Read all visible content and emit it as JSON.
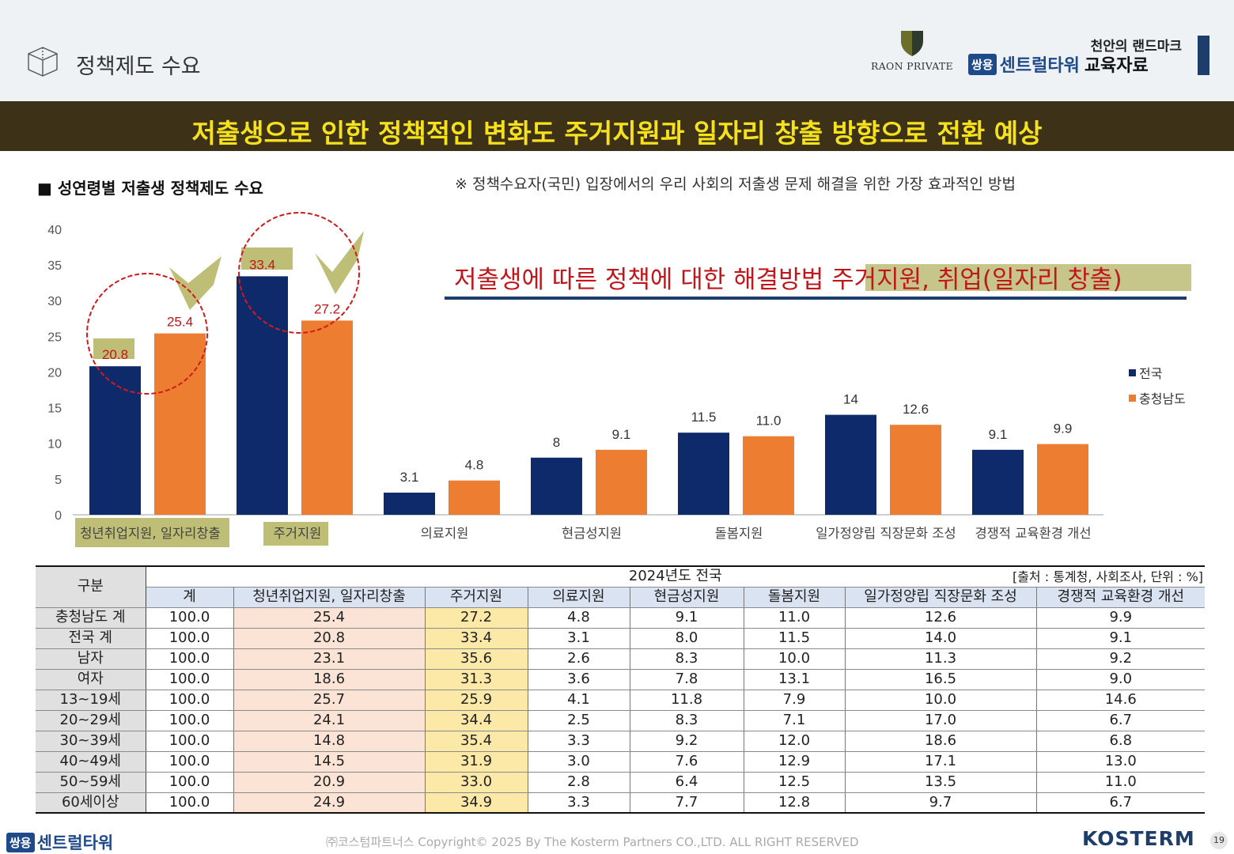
{
  "header": {
    "section_title": "정책제도 수요",
    "raon_logo_text": "RAON PRIVATE",
    "tagline": "천안의 랜드마크",
    "brand_badge": "쌍용",
    "brand_name": "센트럴타워",
    "brand_suffix": "교육자료"
  },
  "banner": {
    "headline": "저출생으로 인한 정책적인 변화도 주거지원과 일자리 창출 방향으로 전환 예상"
  },
  "chart_section": {
    "title": "■ 성연령별 저출생 정책제도 수요",
    "note": "※ 정책수요자(국민) 입장에서의 우리 사회의 저출생 문제 해결을 위한 가장 효과적인 방법",
    "callout": "저출생에 따른 정책에 대한 해결방법 주거지원, 취업(일자리 창출)"
  },
  "chart_data": {
    "type": "bar",
    "categories": [
      "청년취업지원, 일자리창출",
      "주거지원",
      "의료지원",
      "현금성지원",
      "돌봄지원",
      "일가정양립 직장문화 조성",
      "경쟁적 교육환경 개선"
    ],
    "series": [
      {
        "name": "전국",
        "color": "#0f2a6b",
        "values": [
          20.8,
          33.4,
          3.1,
          8,
          11.5,
          14,
          9.1
        ],
        "labels": [
          "20.8",
          "33.4",
          "3.1",
          "8",
          "11.5",
          "14",
          "9.1"
        ]
      },
      {
        "name": "충청남도",
        "color": "#ed7d31",
        "values": [
          25.4,
          27.2,
          4.8,
          9.1,
          11.0,
          12.6,
          9.9
        ],
        "labels": [
          "25.4",
          "27.2",
          "4.8",
          "9.1",
          "11.0",
          "12.6",
          "9.9"
        ]
      }
    ],
    "yticks": [
      "0",
      "5",
      "10",
      "15",
      "20",
      "25",
      "30",
      "35",
      "40"
    ],
    "ylim": [
      0,
      40
    ],
    "legend_position": "right",
    "highlight_color": "#a8a84a",
    "annotation_color": "#d21a1a"
  },
  "table": {
    "corner": "구분",
    "period": "2024년도 전국",
    "source": "[출처 : 통계청, 사회조사, 단위 : %]",
    "columns": [
      "계",
      "청년취업지원, 일자리창출",
      "주거지원",
      "의료지원",
      "현금성지원",
      "돌봄지원",
      "일가정양립 직장문화 조성",
      "경쟁적 교육환경 개선"
    ],
    "rows": [
      {
        "label": "충청남도 계",
        "values": [
          "100.0",
          "25.4",
          "27.2",
          "4.8",
          "9.1",
          "11.0",
          "12.6",
          "9.9"
        ]
      },
      {
        "label": "전국 계",
        "values": [
          "100.0",
          "20.8",
          "33.4",
          "3.1",
          "8.0",
          "11.5",
          "14.0",
          "9.1"
        ]
      },
      {
        "label": "남자",
        "values": [
          "100.0",
          "23.1",
          "35.6",
          "2.6",
          "8.3",
          "10.0",
          "11.3",
          "9.2"
        ]
      },
      {
        "label": "여자",
        "values": [
          "100.0",
          "18.6",
          "31.3",
          "3.6",
          "7.8",
          "13.1",
          "16.5",
          "9.0"
        ]
      },
      {
        "label": "13~19세",
        "values": [
          "100.0",
          "25.7",
          "25.9",
          "4.1",
          "11.8",
          "7.9",
          "10.0",
          "14.6"
        ]
      },
      {
        "label": "20~29세",
        "values": [
          "100.0",
          "24.1",
          "34.4",
          "2.5",
          "8.3",
          "7.1",
          "17.0",
          "6.7"
        ]
      },
      {
        "label": "30~39세",
        "values": [
          "100.0",
          "14.8",
          "35.4",
          "3.3",
          "9.2",
          "12.0",
          "18.6",
          "6.8"
        ]
      },
      {
        "label": "40~49세",
        "values": [
          "100.0",
          "14.5",
          "31.9",
          "3.0",
          "7.6",
          "12.9",
          "17.1",
          "13.0"
        ]
      },
      {
        "label": "50~59세",
        "values": [
          "100.0",
          "20.9",
          "33.0",
          "2.8",
          "6.4",
          "12.5",
          "13.5",
          "11.0"
        ]
      },
      {
        "label": "60세이상",
        "values": [
          "100.0",
          "24.9",
          "34.9",
          "3.3",
          "7.7",
          "12.8",
          "9.7",
          "6.7"
        ]
      }
    ]
  },
  "footer": {
    "brand_badge": "쌍용",
    "brand_name": "센트럴타워",
    "copyright": "㈜코스텀파트너스 Copyright© 2025 By The Kosterm Partners CO.,LTD. ALL RIGHT RESERVED",
    "kosterm": "KOSTERM",
    "page_number": "19"
  }
}
